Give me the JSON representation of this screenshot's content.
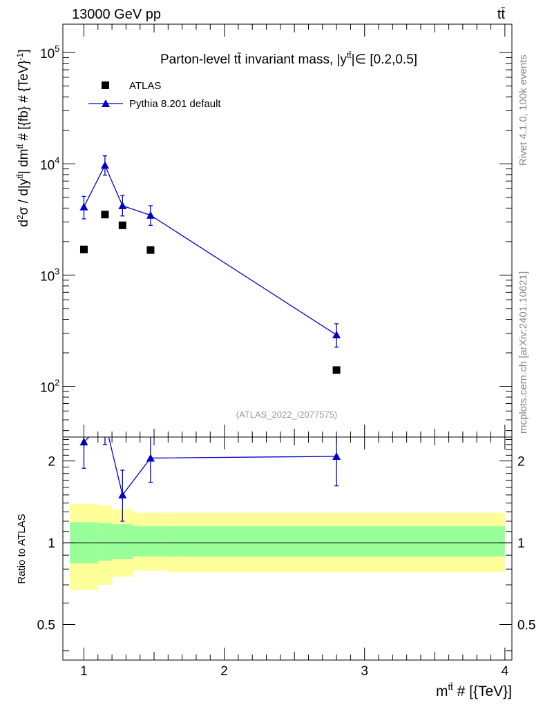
{
  "header": {
    "left": "13000 GeV pp",
    "right": "tt̄"
  },
  "side_labels": {
    "rivet": "Rivet 4.1.0,  100k events",
    "source": "mcplots.cern.ch [arXiv:2401.10621]"
  },
  "colors": {
    "mc": "#0000cc",
    "data": "#000000",
    "band_inner": "#99ff99",
    "band_outer": "#ffff99"
  },
  "chart_data": [
    {
      "type": "scatter",
      "panel": "main",
      "title": "Parton-level tt̄ invariant mass, |y",
      "title_sup": "tt̄",
      "title_tail": "|∈ [0.2,0.5]",
      "watermark": "(ATLAS_2022_I2077575)",
      "ylabel": "d²σ / d|y^tt̄| dm^tt̄ # [{fb} # {TeV}⁻¹]",
      "ylabel_main": "d",
      "ylabel_sup1": "2",
      "ylabel_mid": "σ / d|y",
      "ylabel_sup2": "tt̄",
      "ylabel_mid2": "| dm",
      "ylabel_sup3": "tt̄",
      "ylabel_tail": " # [{fb} # {TeV}",
      "ylabel_sup4": "-1",
      "ylabel_end": "]",
      "yscale": "log",
      "ylim": [
        35,
        180000
      ],
      "xlim": [
        0.85,
        4.05
      ],
      "yticks": [
        {
          "value": 100,
          "base": "10",
          "exp": "2"
        },
        {
          "value": 1000,
          "base": "10",
          "exp": "3"
        },
        {
          "value": 10000,
          "base": "10",
          "exp": "4"
        },
        {
          "value": 100000,
          "base": "10",
          "exp": "5"
        }
      ],
      "legend": [
        {
          "label": "ATLAS",
          "marker": "square"
        },
        {
          "label": "Pythia 8.201 default",
          "marker": "triangle"
        }
      ],
      "series": [
        {
          "name": "ATLAS",
          "x": [
            1.0,
            1.15,
            1.275,
            1.475,
            2.8
          ],
          "y": [
            1700,
            3500,
            2800,
            1680,
            140
          ]
        },
        {
          "name": "Pythia 8.201 default",
          "x": [
            1.0,
            1.15,
            1.275,
            1.475,
            2.8
          ],
          "y": [
            4100,
            9700,
            4200,
            3450,
            290
          ],
          "y_low": [
            3200,
            7900,
            3400,
            2800,
            225
          ],
          "y_high": [
            5100,
            11800,
            5200,
            4200,
            365
          ]
        }
      ]
    },
    {
      "type": "line",
      "panel": "ratio",
      "ylabel": "Ratio to ATLAS",
      "yscale": "log",
      "ylim": [
        0.37,
        2.45
      ],
      "xlim": [
        0.85,
        4.05
      ],
      "xlabel": "m",
      "xlabel_sup": "tt̄",
      "xlabel_tail": " # [{TeV}]",
      "xticks": [
        {
          "value": 1,
          "label": "1"
        },
        {
          "value": 2,
          "label": "2"
        },
        {
          "value": 3,
          "label": "3"
        },
        {
          "value": 4,
          "label": "4"
        }
      ],
      "yticks": [
        {
          "value": 0.5,
          "label": "0.5"
        },
        {
          "value": 1,
          "label": "1"
        },
        {
          "value": 2,
          "label": "2"
        }
      ],
      "bands": [
        {
          "x0": 0.9,
          "x1": 1.1,
          "inner": [
            0.84,
            1.19
          ],
          "outer": [
            0.67,
            1.39
          ]
        },
        {
          "x0": 1.1,
          "x1": 1.2,
          "inner": [
            0.86,
            1.18
          ],
          "outer": [
            0.7,
            1.37
          ]
        },
        {
          "x0": 1.2,
          "x1": 1.35,
          "inner": [
            0.87,
            1.17
          ],
          "outer": [
            0.75,
            1.33
          ]
        },
        {
          "x0": 1.35,
          "x1": 1.6,
          "inner": [
            0.89,
            1.15
          ],
          "outer": [
            0.79,
            1.29
          ]
        },
        {
          "x0": 1.6,
          "x1": 4.0,
          "inner": [
            0.89,
            1.15
          ],
          "outer": [
            0.78,
            1.29
          ]
        }
      ],
      "series": [
        {
          "name": "Pythia 8.201 default",
          "x": [
            1.0,
            1.15,
            1.275,
            1.475,
            2.8
          ],
          "y": [
            2.35,
            2.8,
            1.5,
            2.05,
            2.08
          ],
          "y_low": [
            1.88,
            2.3,
            1.2,
            1.67,
            1.62
          ],
          "y_high": [
            2.9,
            3.4,
            1.85,
            2.5,
            2.55
          ]
        }
      ]
    }
  ]
}
